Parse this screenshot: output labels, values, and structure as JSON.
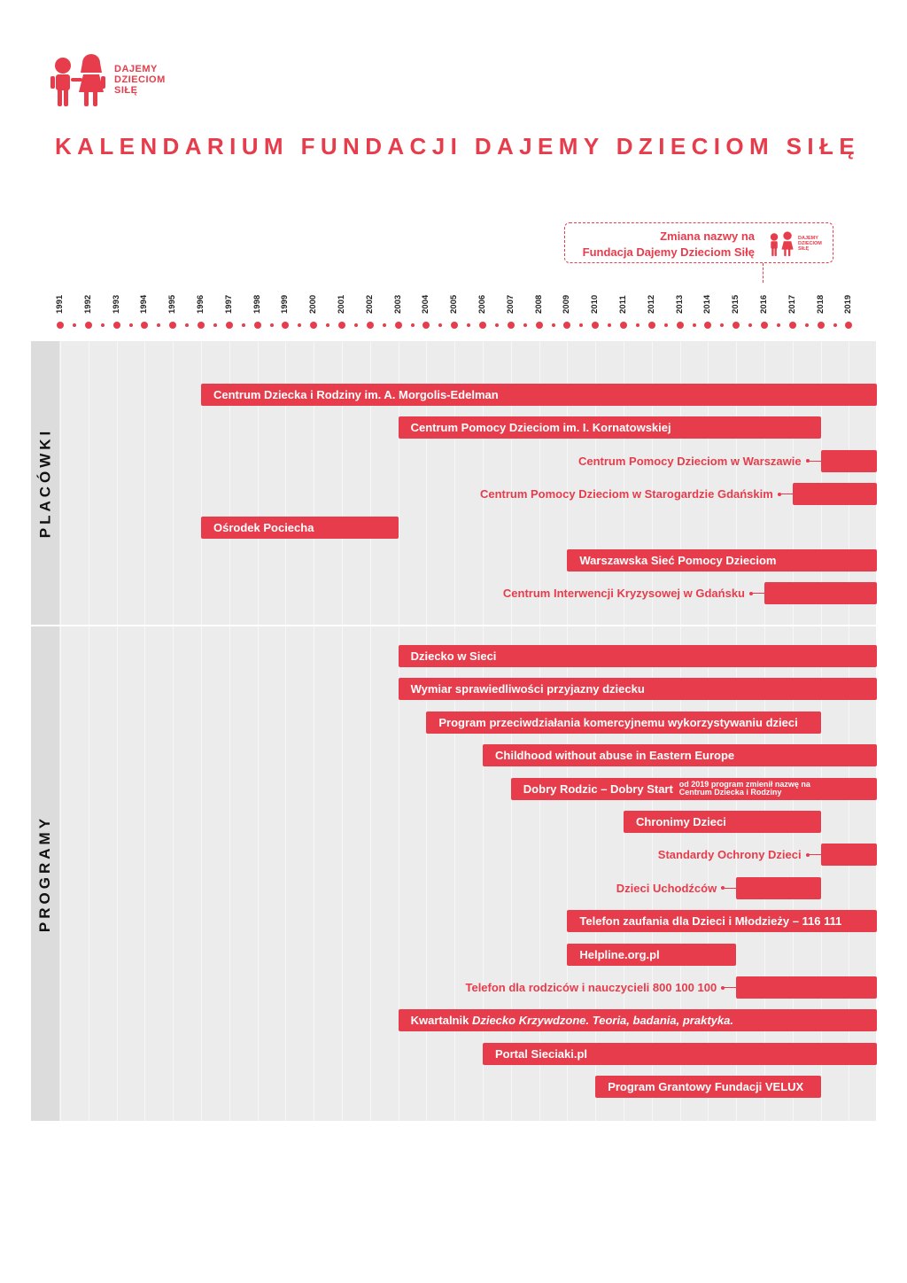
{
  "logo": {
    "lines": [
      "DAJEMY",
      "DZIECIOM",
      "SIŁĘ"
    ]
  },
  "title": "KALENDARIUM FUNDACJI DAJEMY DZIECIOM SIŁĘ",
  "callout": {
    "line1": "Zmiana nazwy na",
    "line2": "Fundacja Dajemy Dzieciom Siłę",
    "logo_lines": [
      "DAJEMY",
      "DZIECIOM",
      "SIŁĘ"
    ]
  },
  "years": [
    "1991",
    "1992",
    "1993",
    "1994",
    "1995",
    "1996",
    "1997",
    "1998",
    "1999",
    "2000",
    "2001",
    "2002",
    "2003",
    "2004",
    "2005",
    "2006",
    "2007",
    "2008",
    "2009",
    "2010",
    "2011",
    "2012",
    "2013",
    "2014",
    "2015",
    "2016",
    "2017",
    "2018",
    "2019"
  ],
  "sections": {
    "placowki": "PLACÓWKI",
    "programy": "PROGRAMY"
  },
  "placowki": [
    {
      "label": "Centrum Dziecka i Rodziny im. A. Morgolis-Edelman",
      "start": 1996,
      "end": 2019,
      "label_outside": false
    },
    {
      "label": "Centrum Pomocy Dzieciom im. I. Kornatowskiej",
      "start": 2003,
      "end": 2018,
      "label_outside": false
    },
    {
      "label": "Centrum Pomocy Dzieciom w Warszawie",
      "start": 2018,
      "end": 2019,
      "label_outside": true
    },
    {
      "label": "Centrum Pomocy Dzieciom w Starogardzie Gdańskim",
      "start": 2017,
      "end": 2019,
      "label_outside": true
    },
    {
      "label": "Ośrodek Pociecha",
      "start": 1996,
      "end": 2003,
      "label_outside": false
    },
    {
      "label": "Warszawska Sieć Pomocy Dzieciom",
      "start": 2009,
      "end": 2019,
      "label_outside": false
    },
    {
      "label": "Centrum Interwencji Kryzysowej w Gdańsku",
      "start": 2016,
      "end": 2019,
      "label_outside": true
    }
  ],
  "programy": [
    {
      "label": "Dziecko w Sieci",
      "start": 2003,
      "end": 2019,
      "label_outside": false
    },
    {
      "label": "Wymiar sprawiedliwości przyjazny dziecku",
      "start": 2003,
      "end": 2019,
      "label_outside": false
    },
    {
      "label": "Program przeciwdziałania komercyjnemu wykorzystywaniu dzieci",
      "start": 2004,
      "end": 2018,
      "label_outside": false
    },
    {
      "label": "Childhood without abuse in Eastern Europe",
      "start": 2006,
      "end": 2019,
      "label_outside": false
    },
    {
      "label": "Dobry Rodzic – Dobry Start",
      "start": 2007,
      "end": 2019,
      "label_outside": false,
      "note": [
        "od 2019 program zmienił nazwę na",
        "Centrum Dziecka i Rodziny"
      ]
    },
    {
      "label": "Chronimy Dzieci",
      "start": 2011,
      "end": 2018,
      "label_outside": false
    },
    {
      "label": "Standardy Ochrony Dzieci",
      "start": 2018,
      "end": 2019,
      "label_outside": true
    },
    {
      "label": "Dzieci Uchodźców",
      "start": 2015,
      "end": 2018,
      "label_outside": true
    },
    {
      "label": "Telefon zaufania dla Dzieci i Młodzieży – 116 111",
      "start": 2009,
      "end": 2019,
      "label_outside": false
    },
    {
      "label": "Helpline.org.pl",
      "start": 2009,
      "end": 2015,
      "label_outside": false
    },
    {
      "label": "Telefon dla rodziców i nauczycieli 800 100 100",
      "start": 2015,
      "end": 2019,
      "label_outside": true
    },
    {
      "label": "Kwartalnik ",
      "italic": "Dziecko Krzywdzone. Teoria, badania, praktyka.",
      "start": 2003,
      "end": 2019,
      "label_outside": false
    },
    {
      "label": "Portal Sieciaki.pl",
      "start": 2006,
      "end": 2019,
      "label_outside": false
    },
    {
      "label": "Program Grantowy Fundacji VELUX",
      "start": 2010,
      "end": 2018,
      "label_outside": false
    }
  ],
  "colors": {
    "accent": "#e63c4b",
    "panel": "#ececec",
    "side": "#dcdcdc"
  },
  "icons": [
    "children-logo-icon"
  ]
}
